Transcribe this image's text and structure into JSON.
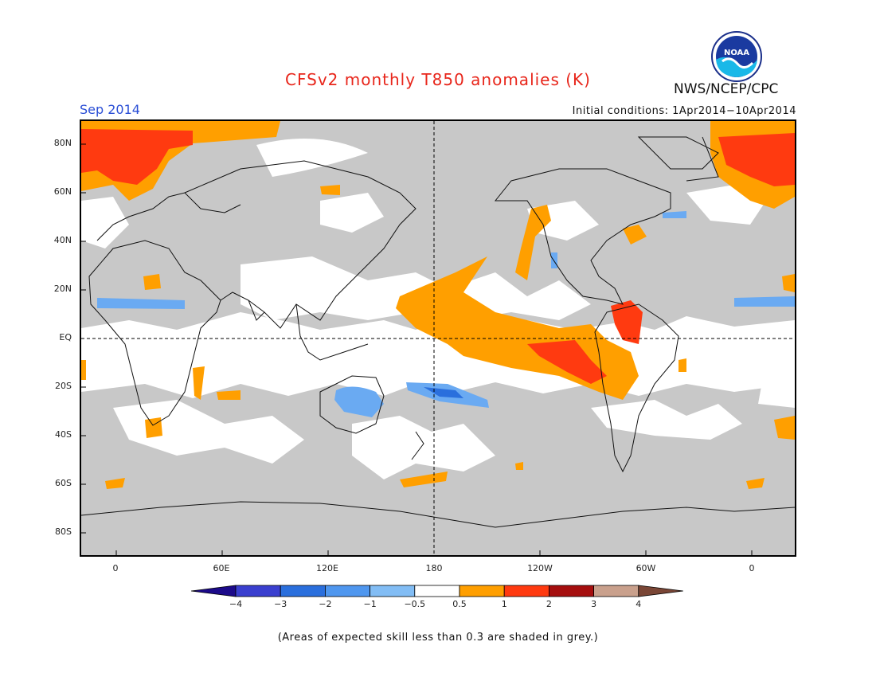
{
  "title": "CFSv2 monthly T850 anomalies (K)",
  "period": "Sep 2014",
  "agency": "NWS/NCEP/CPC",
  "logo_text": "NOAA",
  "initial_conditions": "Initial conditions: 1Apr2014−10Apr2014",
  "lat_labels": [
    "80N",
    "60N",
    "40N",
    "20N",
    "EQ",
    "20S",
    "40S",
    "60S",
    "80S"
  ],
  "lon_labels": [
    "0",
    "60E",
    "120E",
    "180",
    "120W",
    "60W",
    "0"
  ],
  "colorbar": {
    "colors": [
      "#1c0a8a",
      "#3a3fcf",
      "#2a6fdd",
      "#4f97ef",
      "#82bdf5",
      "#ffffff",
      "#ff9f00",
      "#ff3a10",
      "#a50e0e",
      "#c9a08c",
      "#7a4636"
    ],
    "labels": [
      "−4",
      "−3",
      "−2",
      "−1",
      "−0.5",
      "0.5",
      "1",
      "2",
      "3",
      "4"
    ]
  },
  "legend_colors": {
    "grey": "#c8c8c8",
    "orange": "#ff9f00",
    "red": "#ff3a10",
    "light_blue": "#6aaaf2",
    "blue": "#2a6fdd"
  },
  "footnote": "(Areas of expected skill less than 0.3 are shaded in grey.)"
}
